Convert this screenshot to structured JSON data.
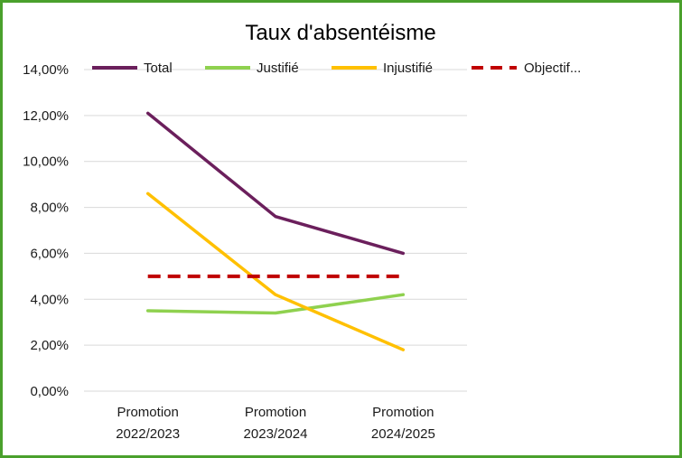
{
  "chart_data": {
    "type": "line",
    "title": "Taux d'absentéisme",
    "categories": [
      [
        "Promotion",
        "2022/2023"
      ],
      [
        "Promotion",
        "2023/2024"
      ],
      [
        "Promotion",
        "2024/2025"
      ]
    ],
    "y_ticks": [
      "0,00%",
      "2,00%",
      "4,00%",
      "6,00%",
      "8,00%",
      "10,00%",
      "12,00%",
      "14,00%"
    ],
    "ylim": [
      0,
      14
    ],
    "grid": true,
    "legend_position": "top",
    "series": [
      {
        "name": "Total",
        "values": [
          12.1,
          7.6,
          6.0
        ],
        "color": "#6b1f5c",
        "dash": "solid"
      },
      {
        "name": "Justifié",
        "values": [
          3.5,
          3.4,
          4.2
        ],
        "color": "#8fd14f",
        "dash": "solid"
      },
      {
        "name": "Injustifié",
        "values": [
          8.6,
          4.2,
          1.8
        ],
        "color": "#ffc000",
        "dash": "solid"
      },
      {
        "name": "Objectif...",
        "values": [
          5.0,
          5.0,
          5.0
        ],
        "color": "#c00000",
        "dash": "dashed"
      }
    ]
  }
}
